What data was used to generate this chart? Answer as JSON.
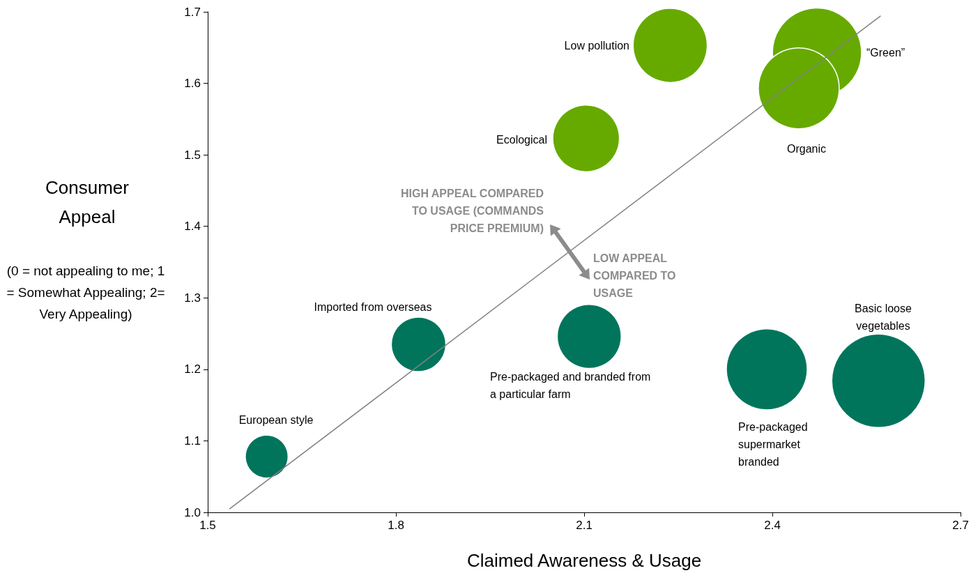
{
  "chart_data": {
    "type": "bubble",
    "xlabel": "Claimed Awareness & Usage",
    "ylabel": "Consumer Appeal",
    "xlim": [
      1.5,
      2.7
    ],
    "xticks": [
      1.5,
      1.8,
      2.1,
      2.4,
      2.7
    ],
    "ylim": [
      1.0,
      1.7
    ],
    "yticks": [
      {
        "value": 1.0,
        "label": "1.0"
      },
      1.1,
      1.2,
      1.3,
      1.4,
      1.5,
      1.6,
      1.7
    ],
    "grid": false,
    "series": [
      {
        "x": [
          2.237,
          2.471,
          2.442,
          2.103,
          1.836,
          2.108,
          2.391,
          2.569,
          1.594
        ],
        "values": [
          1.653,
          1.643,
          1.593,
          1.523,
          1.235,
          1.246,
          1.2,
          1.184,
          1.078
        ],
        "sizes": [
          0.63,
          0.91,
          0.75,
          0.51,
          0.34,
          0.47,
          0.75,
          1,
          0.21
        ],
        "colors": [
          "#66aa00",
          "#66aa00",
          "#66aa00",
          "#66aa00",
          "#00755c",
          "#00755c",
          "#00755c",
          "#00755c",
          "#00755c"
        ]
      },
      {
        "type": "line",
        "x": [
          1.535,
          2.572
        ],
        "values": [
          1.005,
          1.694
        ],
        "color": "#808080",
        "marker": "none",
        "line_style": "solid"
      }
    ],
    "annotations": [
      "(0 = not appealing to me; 1 = Somewhat Appealing; 2= Very Appealing)",
      "HIGH APPEAL COMPARED TO USAGE (COMMANDS PRICE PREMIUM)",
      "LOW APPEAL COMPARED TO USAGE",
      "Low pollution",
      "“Green”",
      "Organic",
      "Ecological",
      "Imported from overseas",
      "Pre-packaged and branded from a particular farm",
      "Pre-packaged supermarket branded",
      "Basic loose vegetables",
      "European style"
    ]
  }
}
